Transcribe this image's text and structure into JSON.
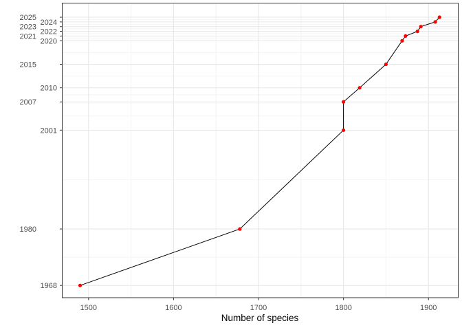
{
  "chart_data": {
    "type": "line",
    "title": "",
    "xlabel": "Number of species",
    "ylabel": "",
    "grid": true,
    "legend_position": "none",
    "x_ticks": [
      1500,
      1600,
      1700,
      1800,
      1900
    ],
    "y_ticks": [
      1968,
      1980,
      2001,
      2007,
      2010,
      2015,
      2020,
      2021,
      2022,
      2023,
      2024,
      2025
    ],
    "xlim": [
      1469,
      1935
    ],
    "ylim": [
      1965.4,
      2028.0
    ],
    "points": [
      {
        "year": 1968,
        "species": 1490
      },
      {
        "year": 1980,
        "species": 1678
      },
      {
        "year": 2001,
        "species": 1800
      },
      {
        "year": 2007,
        "species": 1800
      },
      {
        "year": 2010,
        "species": 1819
      },
      {
        "year": 2015,
        "species": 1850
      },
      {
        "year": 2020,
        "species": 1869
      },
      {
        "year": 2021,
        "species": 1873
      },
      {
        "year": 2022,
        "species": 1887
      },
      {
        "year": 2023,
        "species": 1891
      },
      {
        "year": 2024,
        "species": 1908
      },
      {
        "year": 2025,
        "species": 1913
      }
    ],
    "point_color": "#ff0000",
    "line_color": "#000000",
    "grid_major_color": "#e6e6e6",
    "grid_minor_color": "#f3f3f3",
    "panel_border_color": "#333333",
    "tick_mark_color": "#333333",
    "axis_text_color": "#4d4d4d",
    "axis_title_color": "#000000",
    "panel_background": "#ffffff"
  }
}
